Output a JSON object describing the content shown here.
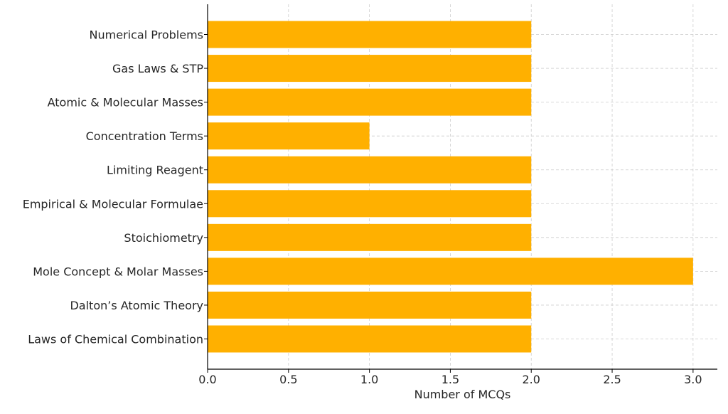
{
  "chart_data": {
    "type": "bar",
    "orientation": "horizontal",
    "title": "",
    "xlabel": "Number of MCQs",
    "ylabel": "",
    "categories": [
      "Laws of Chemical Combination",
      "Dalton’s Atomic Theory",
      "Mole Concept & Molar Masses",
      "Stoichiometry",
      "Empirical & Molecular Formulae",
      "Limiting Reagent",
      "Concentration Terms",
      "Atomic & Molecular Masses",
      "Gas Laws & STP",
      "Numerical Problems"
    ],
    "values": [
      2,
      2,
      3,
      2,
      2,
      2,
      1,
      2,
      2,
      2
    ],
    "xlim": [
      0,
      3.15
    ],
    "xticks": [
      "0.0",
      "0.5",
      "1.0",
      "1.5",
      "2.0",
      "2.5",
      "3.0"
    ],
    "grid": true,
    "colors": {
      "bar": "#FFB000",
      "grid": "#cccccc",
      "axis": "#000000",
      "text": "#262626"
    }
  }
}
